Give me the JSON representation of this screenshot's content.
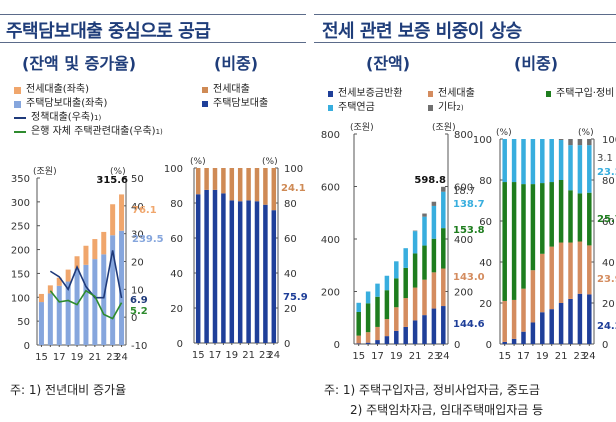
{
  "left_panel": {
    "title": "주택담보대출 중심으로 공급",
    "notes": [
      "주: 1) 전년대비 증가율"
    ]
  },
  "right_panel": {
    "title": "전세 관련 보증 비중이 상승",
    "notes": [
      "주: 1) 주택구입자금, 정비사업자금, 중도금",
      "2) 주택임차자금, 임대주택매입자금 등"
    ]
  },
  "colors": {
    "jeonse_loan": "#f0a66c",
    "mortgage": "#86a6dd",
    "policy_line": "#1f3a7a",
    "bank_line": "#2e8b2e",
    "share_jeonse": "#cf8a55",
    "share_mortgage": "#1f3f99",
    "g_deposit_return": "#1f3f99",
    "g_jeonse": "#d48c5f",
    "g_purchase": "#1e7d1e",
    "g_pension": "#38aede",
    "g_other": "#707070",
    "title": "#1f3d7a"
  },
  "chart_data": [
    {
      "type": "bar",
      "title": "(잔액 및 증가율)",
      "stacked": true,
      "categories": [
        "15",
        "16",
        "17",
        "18",
        "19",
        "20",
        "21",
        "22",
        "23",
        "24"
      ],
      "x_tick_labels": [
        "15",
        "17",
        "19",
        "21",
        "23",
        "24"
      ],
      "ylabel": "(조원)",
      "y2label": "(%)",
      "ylim": [
        0,
        350
      ],
      "yticks": [
        0,
        50,
        100,
        150,
        200,
        250,
        300,
        350
      ],
      "y2lim": [
        -10,
        50
      ],
      "y2ticks": [
        -10,
        0,
        10,
        20,
        30,
        40,
        50
      ],
      "legend": [
        "전세대출(좌축)",
        "주택담보대출(좌축)",
        "정책대출(우축)",
        "은행 자체 주택관련대출(우축)"
      ],
      "legend_superscripts": [
        "",
        "",
        "1)",
        "1)"
      ],
      "series": [
        {
          "name": "주택담보대출(좌축)",
          "axis": "left",
          "kind": "bar",
          "values": [
            90,
            108,
            124,
            133,
            160,
            168,
            180,
            190,
            230,
            239.5
          ]
        },
        {
          "name": "전세대출(좌축)",
          "axis": "left",
          "kind": "bar",
          "values": [
            17,
            17,
            17,
            25,
            26,
            40,
            42,
            47,
            65,
            76.1
          ]
        },
        {
          "name": "정책대출(우축)",
          "axis": "right",
          "kind": "line",
          "values": [
            null,
            16.5,
            14.5,
            10,
            18,
            11,
            7,
            7,
            24,
            6.9
          ]
        },
        {
          "name": "은행 자체 주택관련대출(우축)",
          "axis": "right",
          "kind": "line",
          "values": [
            null,
            9.5,
            5.5,
            6,
            4.5,
            9.5,
            7.5,
            1,
            -0.5,
            5.2
          ]
        }
      ],
      "annotations": {
        "total_label": "315.6",
        "jeonse_label": "76.1",
        "mortgage_label": "239.5",
        "policy_label": "6.9",
        "bank_label": "5.2"
      }
    },
    {
      "type": "bar",
      "title": "(비중)",
      "stacked": true,
      "categories": [
        "15",
        "16",
        "17",
        "18",
        "19",
        "20",
        "21",
        "22",
        "23",
        "24"
      ],
      "x_tick_labels": [
        "15",
        "17",
        "19",
        "21",
        "23",
        "24"
      ],
      "ylabel": "(%)",
      "y2label": "(%)",
      "ylim": [
        0,
        100
      ],
      "yticks": [
        0,
        20,
        40,
        60,
        80,
        100
      ],
      "legend": [
        "전세대출",
        "주택담보대출"
      ],
      "series": [
        {
          "name": "주택담보대출",
          "values": [
            85,
            87.5,
            87.5,
            85.5,
            81.5,
            81,
            81.5,
            81,
            79,
            75.9
          ]
        },
        {
          "name": "전세대출",
          "values": [
            15,
            12.5,
            12.5,
            14.5,
            18.5,
            19,
            18.5,
            19,
            21,
            24.1
          ]
        }
      ],
      "annotations": {
        "jeonse_label": "24.1",
        "mortgage_label": "75.9"
      }
    },
    {
      "type": "bar",
      "title": "(잔액)",
      "stacked": true,
      "categories": [
        "15",
        "16",
        "17",
        "18",
        "19",
        "20",
        "21",
        "22",
        "23",
        "24"
      ],
      "x_tick_labels": [
        "15",
        "17",
        "19",
        "21",
        "23",
        "24"
      ],
      "ylabel": "(조원)",
      "y2label": "(조원)",
      "ylim": [
        0,
        800
      ],
      "yticks": [
        0,
        200,
        400,
        600,
        800
      ],
      "legend": [
        "전세보증금반환",
        "전세대출",
        "주택구입·정비 등",
        "주택연금",
        "기타"
      ],
      "legend_superscripts": [
        "",
        "",
        "1)",
        "",
        "2)"
      ],
      "series": [
        {
          "name": "전세보증금반환",
          "values": [
            2,
            5,
            15,
            30,
            50,
            65,
            90,
            110,
            135,
            144.6
          ]
        },
        {
          "name": "전세대출",
          "values": [
            30,
            40,
            50,
            65,
            90,
            110,
            125,
            135,
            138,
            143.0
          ]
        },
        {
          "name": "주택구입·정비 등",
          "values": [
            90,
            110,
            115,
            110,
            110,
            115,
            130,
            130,
            128,
            153.8
          ]
        },
        {
          "name": "주택연금",
          "values": [
            35,
            45,
            50,
            55,
            65,
            75,
            85,
            110,
            125,
            138.7
          ]
        },
        {
          "name": "기타",
          "values": [
            0,
            0,
            0,
            0,
            0,
            0,
            2,
            12,
            16,
            18.7
          ]
        }
      ],
      "annotations": {
        "total_label": "598.8",
        "labels": [
          "144.6",
          "143.0",
          "153.8",
          "138.7",
          "18.7"
        ]
      }
    },
    {
      "type": "bar",
      "title": "(비중)",
      "stacked": true,
      "categories": [
        "15",
        "16",
        "17",
        "18",
        "19",
        "20",
        "21",
        "22",
        "23",
        "24"
      ],
      "x_tick_labels": [
        "15",
        "17",
        "19",
        "21",
        "23",
        "24"
      ],
      "ylabel": "(%)",
      "y2label": "(%)",
      "ylim": [
        0,
        100
      ],
      "yticks": [
        0,
        20,
        40,
        60,
        80,
        100
      ],
      "series": [
        {
          "name": "전세보증금반환",
          "values": [
            1,
            2.5,
            6,
            10.5,
            15.5,
            17,
            20,
            22,
            24.5,
            24.2
          ]
        },
        {
          "name": "전세대출",
          "values": [
            20,
            19,
            21,
            25.5,
            28.5,
            30.5,
            29.5,
            27.5,
            25.5,
            23.9
          ]
        },
        {
          "name": "주택구입·정비 등",
          "values": [
            58,
            57.5,
            51,
            42,
            34.5,
            31.5,
            30.5,
            25.5,
            23.5,
            25.7
          ]
        },
        {
          "name": "주택연금",
          "values": [
            21,
            21,
            22,
            22,
            21.5,
            21,
            19.5,
            22,
            23.5,
            23.2
          ]
        },
        {
          "name": "기타",
          "values": [
            0,
            0,
            0,
            0,
            0,
            0,
            0.5,
            3,
            3,
            3.1
          ]
        }
      ],
      "annotations": {
        "labels": [
          "24.2",
          "23.9",
          "25.7",
          "23.2",
          "3.1"
        ]
      }
    }
  ]
}
